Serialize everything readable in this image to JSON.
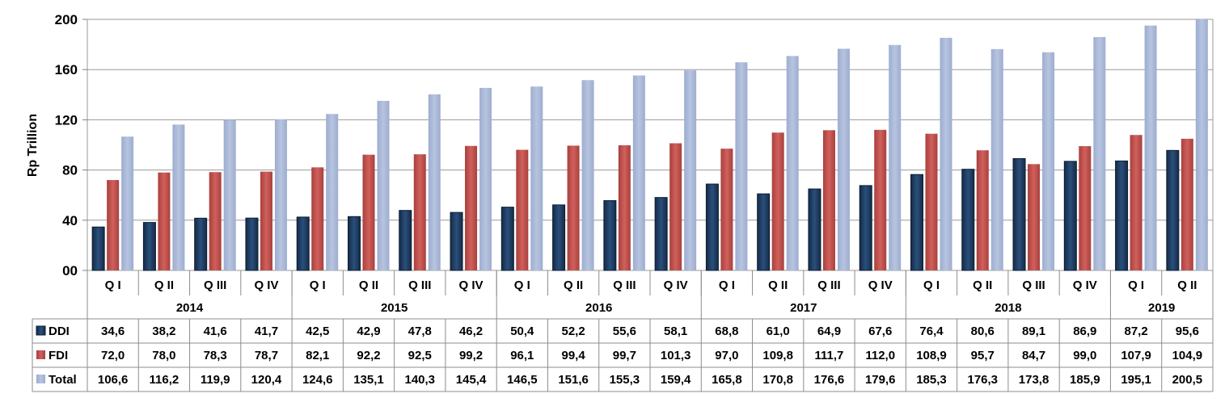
{
  "chart_data": {
    "type": "bar",
    "ylabel": "Rp Trillion",
    "ylim": [
      0,
      200
    ],
    "yticks": [
      "00",
      "40",
      "80",
      "120",
      "160",
      "200"
    ],
    "grid": true,
    "legend": "data-table",
    "years": [
      {
        "label": "2014",
        "quarters": 4
      },
      {
        "label": "2015",
        "quarters": 4
      },
      {
        "label": "2016",
        "quarters": 4
      },
      {
        "label": "2017",
        "quarters": 4
      },
      {
        "label": "2018",
        "quarters": 4
      },
      {
        "label": "2019",
        "quarters": 2
      }
    ],
    "categories": [
      "Q I",
      "Q II",
      "Q III",
      "Q IV",
      "Q I",
      "Q II",
      "Q III",
      "Q IV",
      "Q I",
      "Q II",
      "Q III",
      "Q IV",
      "Q I",
      "Q II",
      "Q III",
      "Q IV",
      "Q I",
      "Q II",
      "Q III",
      "Q IV",
      "Q I",
      "Q II"
    ],
    "series": [
      {
        "name": "DDI",
        "color": "#1f3d63",
        "values": [
          34.6,
          38.2,
          41.6,
          41.7,
          42.5,
          42.9,
          47.8,
          46.2,
          50.4,
          52.2,
          55.6,
          58.1,
          68.8,
          61.0,
          64.9,
          67.6,
          76.4,
          80.6,
          89.1,
          86.9,
          87.2,
          95.6
        ],
        "labels": [
          "34,6",
          "38,2",
          "41,6",
          "41,7",
          "42,5",
          "42,9",
          "47,8",
          "46,2",
          "50,4",
          "52,2",
          "55,6",
          "58,1",
          "68,8",
          "61,0",
          "64,9",
          "67,6",
          "76,4",
          "80,6",
          "89,1",
          "86,9",
          "87,2",
          "95,6"
        ]
      },
      {
        "name": "FDI",
        "color": "#c0504d",
        "values": [
          72.0,
          78.0,
          78.3,
          78.7,
          82.1,
          92.2,
          92.5,
          99.2,
          96.1,
          99.4,
          99.7,
          101.3,
          97.0,
          109.8,
          111.7,
          112.0,
          108.9,
          95.7,
          84.7,
          99.0,
          107.9,
          104.9
        ],
        "labels": [
          "72,0",
          "78,0",
          "78,3",
          "78,7",
          "82,1",
          "92,2",
          "92,5",
          "99,2",
          "96,1",
          "99,4",
          "99,7",
          "101,3",
          "97,0",
          "109,8",
          "111,7",
          "112,0",
          "108,9",
          "95,7",
          "84,7",
          "99,0",
          "107,9",
          "104,9"
        ]
      },
      {
        "name": "Total",
        "color": "#a9b8d6",
        "values": [
          106.6,
          116.2,
          119.9,
          120.4,
          124.6,
          135.1,
          140.3,
          145.4,
          146.5,
          151.6,
          155.3,
          159.4,
          165.8,
          170.8,
          176.6,
          179.6,
          185.3,
          176.3,
          173.8,
          185.9,
          195.1,
          200.5
        ],
        "labels": [
          "106,6",
          "116,2",
          "119,9",
          "120,4",
          "124,6",
          "135,1",
          "140,3",
          "145,4",
          "146,5",
          "151,6",
          "155,3",
          "159,4",
          "165,8",
          "170,8",
          "176,6",
          "179,6",
          "185,3",
          "176,3",
          "173,8",
          "185,9",
          "195,1",
          "200,5"
        ]
      }
    ]
  }
}
